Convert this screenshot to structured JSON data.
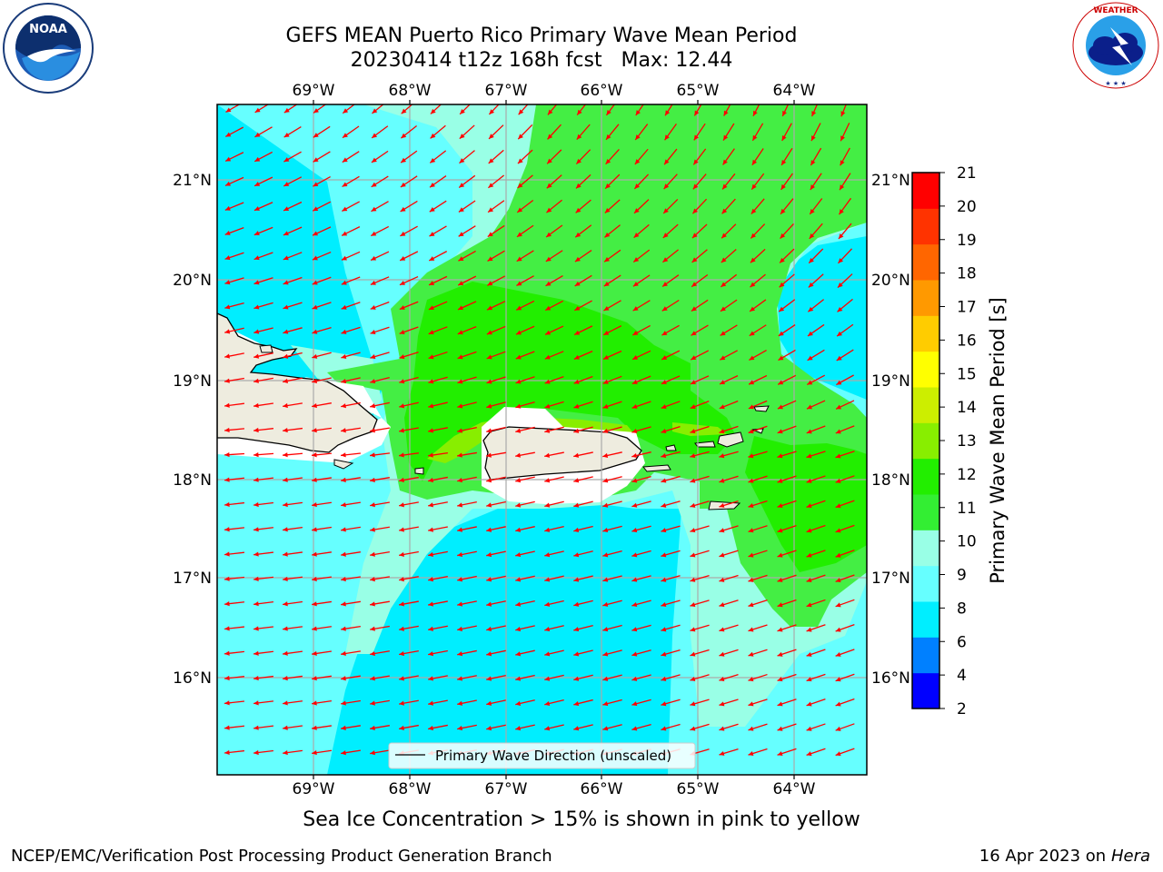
{
  "title": {
    "line1": "GEFS MEAN Puerto Rico Primary Wave Mean Period",
    "line2": "20230414 t12z 168h fcst   Max: 12.44"
  },
  "subtitle": "Sea Ice Concentration > 15% is shown in pink to yellow",
  "footer": {
    "left": "NCEP/EMC/Verification Post Processing Product Generation Branch",
    "right_prefix": "16 Apr 2023 on ",
    "right_host": "Hera"
  },
  "logos": {
    "noaa": {
      "text": "NOAA",
      "ring_top": "NATIONAL OCEANIC AND ATMOSPHERIC ADMINISTRATION",
      "ring_bottom": "U.S. DEPARTMENT OF COMMERCE"
    },
    "nws": {
      "ring": "NATIONAL WEATHER SERVICE"
    }
  },
  "map": {
    "lon_labels": [
      "69°W",
      "68°W",
      "67°W",
      "66°W",
      "65°W",
      "64°W"
    ],
    "lat_labels": [
      "21°N",
      "20°N",
      "19°N",
      "18°N",
      "17°N",
      "16°N"
    ],
    "legend_label": "Primary Wave Direction (unscaled)",
    "arrow_color": "#ff0000",
    "land_color": "#eeecdf"
  },
  "colorbar": {
    "label": "Primary Wave Mean Period [s]",
    "ticks": [
      "2",
      "4",
      "6",
      "8",
      "9",
      "10",
      "11",
      "12",
      "13",
      "14",
      "15",
      "16",
      "17",
      "18",
      "19",
      "20",
      "21"
    ],
    "colors": [
      "#0000ff",
      "#0080ff",
      "#00eeff",
      "#66ffff",
      "#99ffe6",
      "#33ee33",
      "#22ee00",
      "#88ee00",
      "#ccee00",
      "#ffff00",
      "#ffcc00",
      "#ff9900",
      "#ff6600",
      "#ff3300",
      "#ff0000"
    ]
  }
}
